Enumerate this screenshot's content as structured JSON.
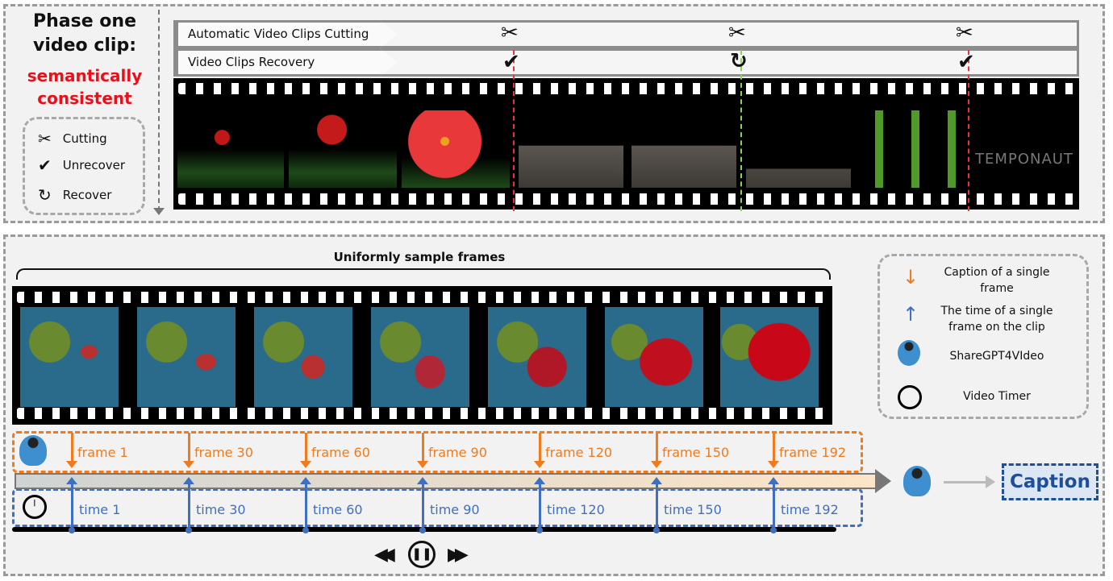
{
  "phase_one": {
    "title": "Phase one video clip:",
    "subtitle": "semantically consistent",
    "legend": [
      {
        "icon": "scissors-icon",
        "label": "Cutting"
      },
      {
        "icon": "check-icon",
        "label": "Unrecover"
      },
      {
        "icon": "recover-arrow-icon",
        "label": "Recover"
      }
    ],
    "tracks": [
      "Automatic Video Clips Cutting",
      "Video Clips Recovery"
    ],
    "cuts": [
      {
        "status": "unrecover",
        "color": "#e8343a"
      },
      {
        "status": "recover",
        "color": "#7ed957"
      },
      {
        "status": "unrecover",
        "color": "#e8343a"
      }
    ],
    "logo_text": "TEMPONAUT"
  },
  "phase_two": {
    "brace_label": "Uniformly sample frames",
    "frames": [
      "frame 1",
      "frame 30",
      "frame 60",
      "frame 90",
      "frame 120",
      "frame 150",
      "frame 192"
    ],
    "times": [
      "time 1",
      "time 30",
      "time 60",
      "time 90",
      "time 120",
      "time 150",
      "time 192"
    ],
    "output": "Caption",
    "legend": [
      {
        "icon": "orange-down-arrow-icon",
        "label": "Caption of a single frame"
      },
      {
        "icon": "blue-up-arrow-icon",
        "label": "The time of a single frame on the clip"
      },
      {
        "icon": "dolphin-icon",
        "label": "ShareGPT4VIdeo"
      },
      {
        "icon": "stopwatch-icon",
        "label": "Video Timer"
      }
    ]
  },
  "colors": {
    "caption": "#f07a1c",
    "time": "#3f6fc0",
    "cut": "#e8343a",
    "recover": "#7ed957",
    "output": "#1f4f99"
  }
}
